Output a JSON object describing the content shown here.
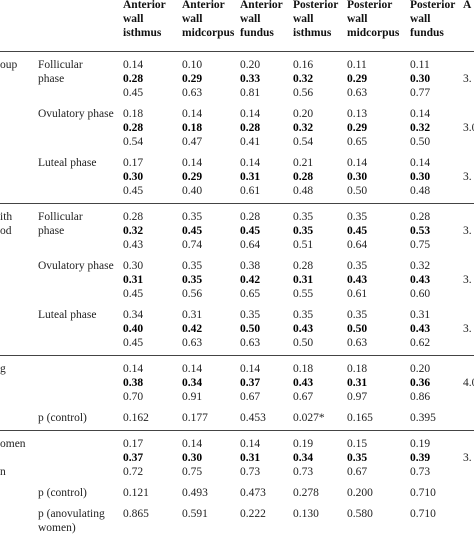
{
  "header": {
    "columns": [
      [
        "Anterior",
        "wall",
        "isthmus"
      ],
      [
        "Anterior",
        "wall",
        "midcorpus"
      ],
      [
        "Anterior",
        "wall",
        "fundus"
      ],
      [
        "Posterior",
        "wall",
        "isthmus"
      ],
      [
        "Posterior",
        "wall",
        "midcorpus"
      ],
      [
        "Posterior",
        "wall",
        "fundus"
      ],
      [
        "A"
      ]
    ]
  },
  "groups": [
    {
      "name_lines": [
        "oup"
      ],
      "phases": [
        {
          "label_lines": [
            "Follicular",
            "phase"
          ],
          "rows": [
            {
              "values": [
                "0.14",
                "0.10",
                "0.20",
                "0.16",
                "0.11",
                "0.11"
              ],
              "bold": false,
              "extra": ""
            },
            {
              "values": [
                "0.28",
                "0.29",
                "0.33",
                "0.32",
                "0.29",
                "0.30"
              ],
              "bold": true,
              "extra": "3."
            },
            {
              "values": [
                "0.45",
                "0.63",
                "0.81",
                "0.56",
                "0.63",
                "0.77"
              ],
              "bold": false,
              "extra": ""
            }
          ]
        },
        {
          "label_lines": [
            "Ovulatory phase"
          ],
          "rows": [
            {
              "values": [
                "0.18",
                "0.14",
                "0.14",
                "0.20",
                "0.13",
                "0.14"
              ],
              "bold": false,
              "extra": ""
            },
            {
              "values": [
                "0.28",
                "0.18",
                "0.28",
                "0.32",
                "0.29",
                "0.32"
              ],
              "bold": true,
              "extra": "3.0"
            },
            {
              "values": [
                "0.54",
                "0.47",
                "0.41",
                "0.54",
                "0.65",
                "0.50"
              ],
              "bold": false,
              "extra": ""
            }
          ]
        },
        {
          "label_lines": [
            "Luteal phase"
          ],
          "rows": [
            {
              "values": [
                "0.17",
                "0.14",
                "0.14",
                "0.21",
                "0.14",
                "0.14"
              ],
              "bold": false,
              "extra": ""
            },
            {
              "values": [
                "0.30",
                "0.29",
                "0.31",
                "0.28",
                "0.30",
                "0.30"
              ],
              "bold": true,
              "extra": "3."
            },
            {
              "values": [
                "0.45",
                "0.40",
                "0.61",
                "0.48",
                "0.50",
                "0.48"
              ],
              "bold": false,
              "extra": ""
            }
          ]
        }
      ]
    },
    {
      "name_lines": [
        "ith",
        "od"
      ],
      "phases": [
        {
          "label_lines": [
            "Follicular",
            "phase"
          ],
          "rows": [
            {
              "values": [
                "0.28",
                "0.35",
                "0.28",
                "0.35",
                "0.35",
                "0.28"
              ],
              "bold": false,
              "extra": ""
            },
            {
              "values": [
                "0.32",
                "0.45",
                "0.45",
                "0.35",
                "0.45",
                "0.53"
              ],
              "bold": true,
              "extra": "3."
            },
            {
              "values": [
                "0.43",
                "0.74",
                "0.64",
                "0.51",
                "0.64",
                "0.75"
              ],
              "bold": false,
              "extra": ""
            }
          ]
        },
        {
          "label_lines": [
            "Ovulatory phase"
          ],
          "rows": [
            {
              "values": [
                "0.30",
                "0.35",
                "0.38",
                "0.28",
                "0.35",
                "0.32"
              ],
              "bold": false,
              "extra": ""
            },
            {
              "values": [
                "0.31",
                "0.35",
                "0.42",
                "0.31",
                "0.43",
                "0.43"
              ],
              "bold": true,
              "extra": "3."
            },
            {
              "values": [
                "0.45",
                "0.56",
                "0.65",
                "0.55",
                "0.61",
                "0.60"
              ],
              "bold": false,
              "extra": ""
            }
          ]
        },
        {
          "label_lines": [
            "Luteal phase"
          ],
          "rows": [
            {
              "values": [
                "0.34",
                "0.31",
                "0.35",
                "0.35",
                "0.35",
                "0.31"
              ],
              "bold": false,
              "extra": ""
            },
            {
              "values": [
                "0.40",
                "0.42",
                "0.50",
                "0.43",
                "0.50",
                "0.43"
              ],
              "bold": true,
              "extra": "3."
            },
            {
              "values": [
                "0.45",
                "0.63",
                "0.63",
                "0.50",
                "0.63",
                "0.62"
              ],
              "bold": false,
              "extra": ""
            }
          ]
        }
      ]
    },
    {
      "name_lines": [
        "g"
      ],
      "phases": [
        {
          "label_lines": [],
          "rows": [
            {
              "values": [
                "0.14",
                "0.14",
                "0.14",
                "0.18",
                "0.18",
                "0.20"
              ],
              "bold": false,
              "extra": ""
            },
            {
              "values": [
                "0.38",
                "0.34",
                "0.37",
                "0.43",
                "0.31",
                "0.36"
              ],
              "bold": true,
              "extra": "4.0"
            },
            {
              "values": [
                "0.70",
                "0.91",
                "0.67",
                "0.67",
                "0.97",
                "0.86"
              ],
              "bold": false,
              "extra": ""
            }
          ]
        },
        {
          "label_lines": [
            "p (control)"
          ],
          "rows": [
            {
              "values": [
                "0.162",
                "0.177",
                "0.453",
                "0.027*",
                "0.165",
                "0.395"
              ],
              "bold": false,
              "extra": ""
            }
          ]
        }
      ]
    },
    {
      "name_lines": [
        "omen",
        "",
        "n"
      ],
      "phases": [
        {
          "label_lines": [],
          "rows": [
            {
              "values": [
                "0.17",
                "0.14",
                "0.14",
                "0.19",
                "0.15",
                "0.19"
              ],
              "bold": false,
              "extra": ""
            },
            {
              "values": [
                "0.37",
                "0.30",
                "0.31",
                "0.34",
                "0.35",
                "0.39"
              ],
              "bold": true,
              "extra": "3."
            },
            {
              "values": [
                "0.72",
                "0.75",
                "0.73",
                "0.73",
                "0.67",
                "0.73"
              ],
              "bold": false,
              "extra": ""
            }
          ]
        },
        {
          "label_lines": [
            "p (control)"
          ],
          "rows": [
            {
              "values": [
                "0.121",
                "0.493",
                "0.473",
                "0.278",
                "0.200",
                "0.710"
              ],
              "bold": false,
              "extra": ""
            }
          ]
        },
        {
          "label_lines": [
            "p (anovulating",
            "women)"
          ],
          "rows": [
            {
              "values": [
                "0.865",
                "0.591",
                "0.222",
                "0.130",
                "0.580",
                "0.710"
              ],
              "bold": false,
              "extra": ""
            }
          ]
        }
      ]
    }
  ]
}
